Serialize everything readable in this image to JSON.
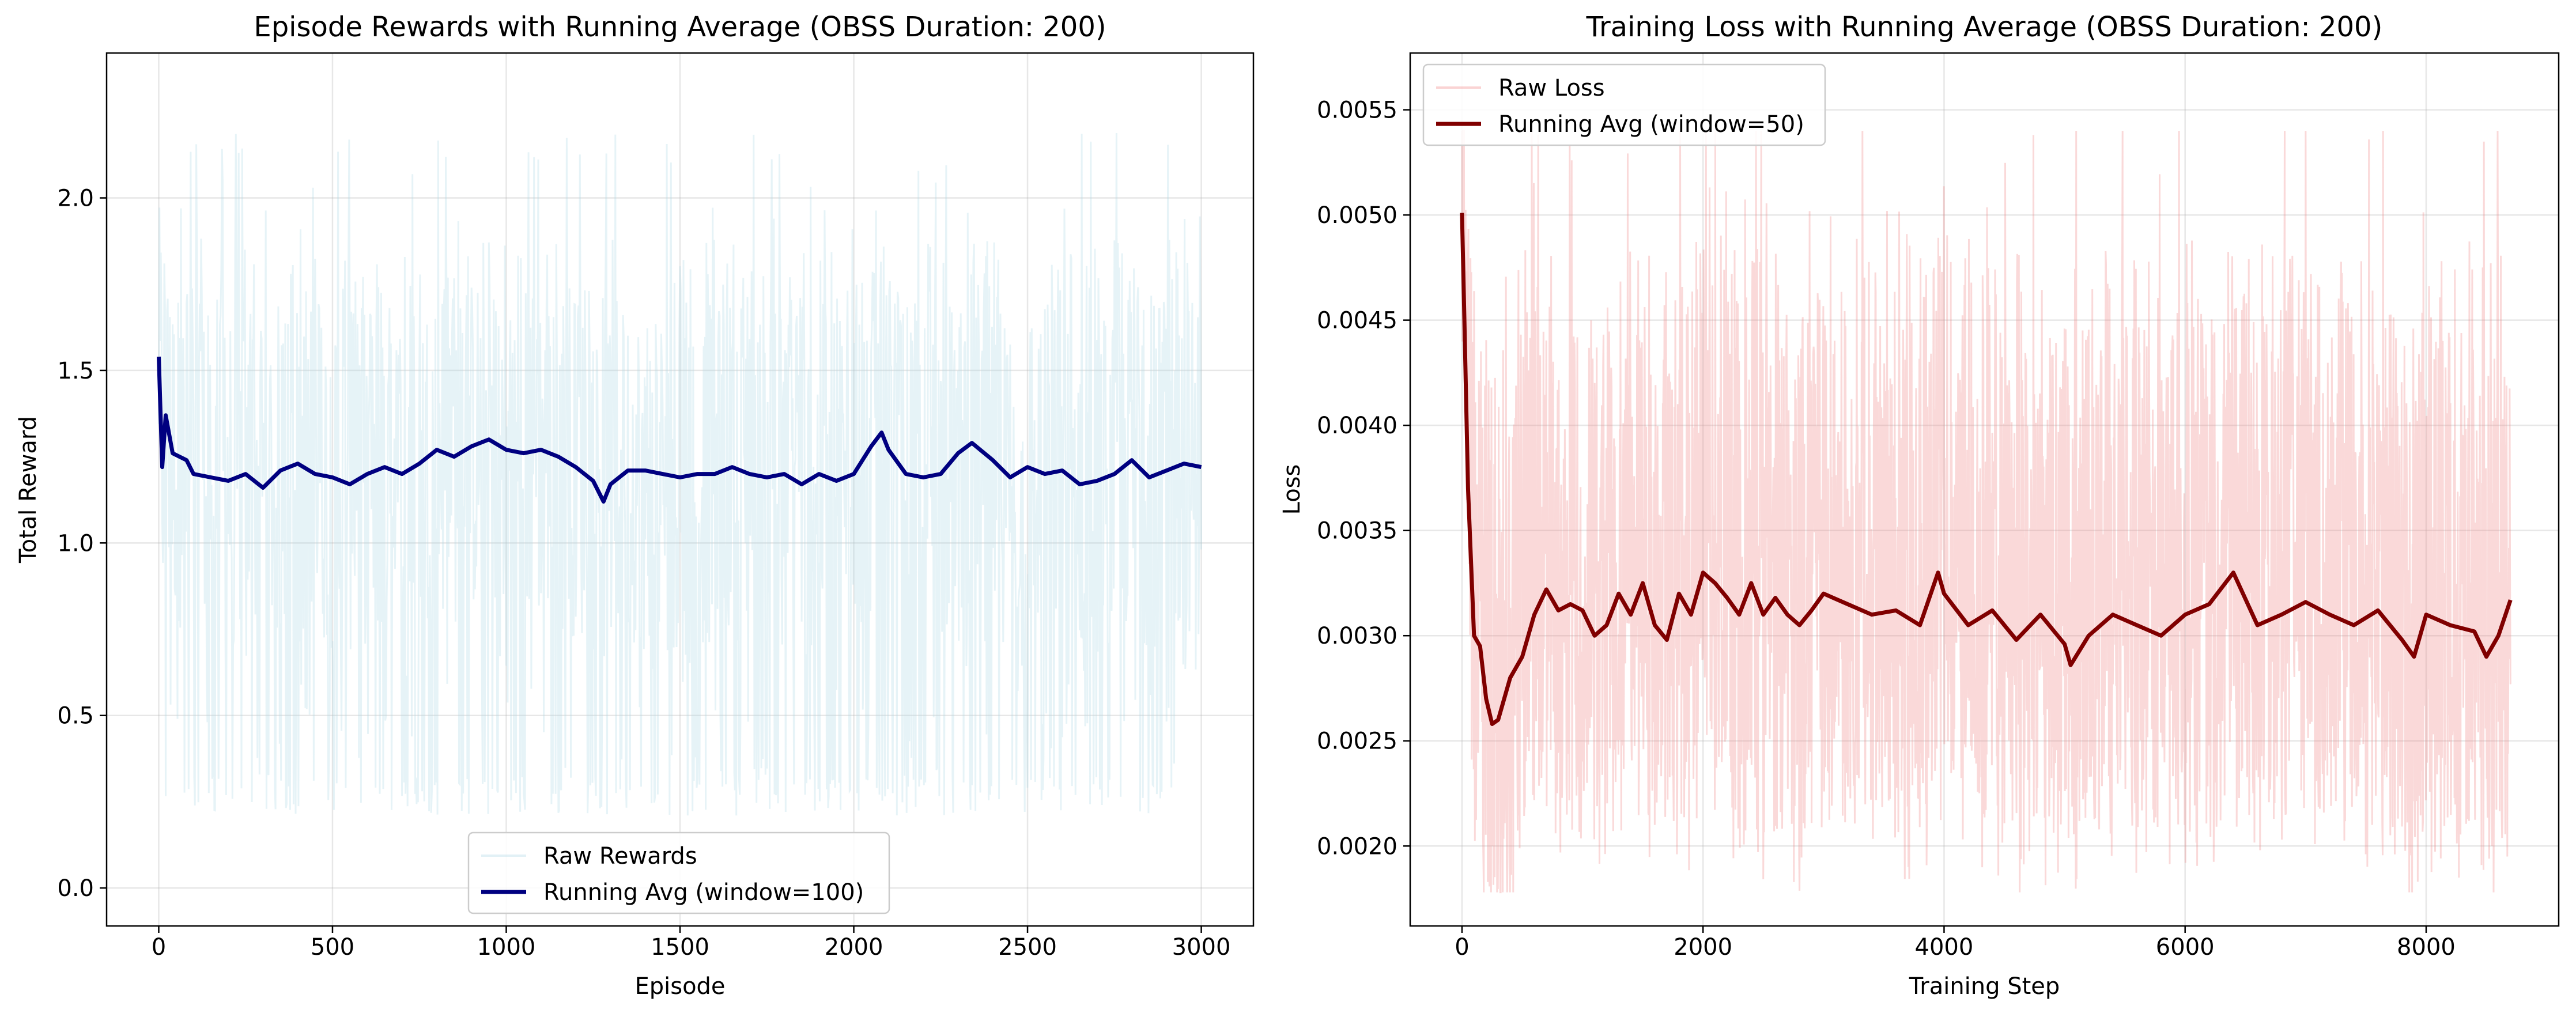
{
  "chart_data": [
    {
      "type": "line",
      "title": "Episode Rewards with Running Average (OBSS Duration: 200)",
      "xlabel": "Episode",
      "ylabel": "Total Reward",
      "xlim": [
        -150,
        3150
      ],
      "ylim": [
        -0.11,
        2.42
      ],
      "xticks": [
        0,
        500,
        1000,
        1500,
        2000,
        2500,
        3000
      ],
      "yticks": [
        0.0,
        0.5,
        1.0,
        1.5,
        2.0
      ],
      "ytick_labels": [
        "0.0",
        "0.5",
        "1.0",
        "1.5",
        "2.0"
      ],
      "grid": true,
      "legend_position": "lower-center",
      "series": [
        {
          "name": "Raw Rewards",
          "color": "#add8e6",
          "style": "noisy-band",
          "x_range": [
            0,
            3000
          ],
          "approx_range": [
            0.0,
            2.3
          ],
          "approx_center": 1.2
        },
        {
          "name": "Running Avg (window=100)",
          "color": "#000080",
          "x": [
            0,
            10,
            20,
            40,
            60,
            80,
            100,
            150,
            200,
            250,
            300,
            350,
            400,
            450,
            500,
            550,
            600,
            650,
            700,
            750,
            800,
            850,
            900,
            950,
            1000,
            1050,
            1100,
            1150,
            1200,
            1250,
            1280,
            1300,
            1350,
            1400,
            1450,
            1500,
            1550,
            1600,
            1650,
            1700,
            1750,
            1800,
            1850,
            1900,
            1950,
            2000,
            2050,
            2080,
            2100,
            2150,
            2200,
            2250,
            2300,
            2340,
            2400,
            2450,
            2500,
            2550,
            2600,
            2650,
            2700,
            2750,
            2800,
            2850,
            2900,
            2950,
            3000
          ],
          "y": [
            1.54,
            1.22,
            1.37,
            1.26,
            1.25,
            1.24,
            1.2,
            1.19,
            1.18,
            1.2,
            1.16,
            1.21,
            1.23,
            1.2,
            1.19,
            1.17,
            1.2,
            1.22,
            1.2,
            1.23,
            1.27,
            1.25,
            1.28,
            1.3,
            1.27,
            1.26,
            1.27,
            1.25,
            1.22,
            1.18,
            1.12,
            1.17,
            1.21,
            1.21,
            1.2,
            1.19,
            1.2,
            1.2,
            1.22,
            1.2,
            1.19,
            1.2,
            1.17,
            1.2,
            1.18,
            1.2,
            1.28,
            1.32,
            1.27,
            1.2,
            1.19,
            1.2,
            1.26,
            1.29,
            1.24,
            1.19,
            1.22,
            1.2,
            1.21,
            1.17,
            1.18,
            1.2,
            1.24,
            1.19,
            1.21,
            1.23,
            1.22
          ]
        }
      ]
    },
    {
      "type": "line",
      "title": "Training Loss with Running Average (OBSS Duration: 200)",
      "xlabel": "Training Step",
      "ylabel": "Loss",
      "xlim": [
        -430,
        9100
      ],
      "ylim": [
        0.00162,
        0.00577
      ],
      "xticks": [
        0,
        2000,
        4000,
        6000,
        8000
      ],
      "yticks": [
        0.002,
        0.0025,
        0.003,
        0.0035,
        0.004,
        0.0045,
        0.005,
        0.0055
      ],
      "ytick_labels": [
        "0.0020",
        "0.0025",
        "0.0030",
        "0.0035",
        "0.0040",
        "0.0045",
        "0.0050",
        "0.0055"
      ],
      "grid": true,
      "legend_position": "upper-left",
      "series": [
        {
          "name": "Raw Loss",
          "color": "#f08080",
          "style": "noisy-band",
          "x_range": [
            0,
            8700
          ],
          "approx_range": [
            0.00178,
            0.0054
          ],
          "approx_center": 0.00305
        },
        {
          "name": "Running Avg (window=50)",
          "color": "#800000",
          "x": [
            0,
            20,
            50,
            100,
            150,
            200,
            250,
            300,
            400,
            500,
            600,
            700,
            800,
            900,
            1000,
            1100,
            1200,
            1300,
            1400,
            1500,
            1600,
            1700,
            1800,
            1900,
            2000,
            2100,
            2200,
            2300,
            2400,
            2500,
            2600,
            2700,
            2800,
            2900,
            3000,
            3200,
            3400,
            3600,
            3800,
            3950,
            4000,
            4200,
            4400,
            4600,
            4800,
            5000,
            5050,
            5200,
            5400,
            5600,
            5800,
            6000,
            6200,
            6400,
            6600,
            6800,
            7000,
            7200,
            7400,
            7600,
            7800,
            7900,
            8000,
            8200,
            8400,
            8500,
            8600,
            8700
          ],
          "y": [
            0.00501,
            0.0045,
            0.0037,
            0.003,
            0.00295,
            0.0027,
            0.00258,
            0.0026,
            0.0028,
            0.0029,
            0.0031,
            0.00322,
            0.00312,
            0.00315,
            0.00312,
            0.003,
            0.00305,
            0.0032,
            0.0031,
            0.00325,
            0.00305,
            0.00298,
            0.0032,
            0.0031,
            0.0033,
            0.00325,
            0.00318,
            0.0031,
            0.00325,
            0.0031,
            0.00318,
            0.0031,
            0.00305,
            0.00312,
            0.0032,
            0.00315,
            0.0031,
            0.00312,
            0.00305,
            0.0033,
            0.0032,
            0.00305,
            0.00312,
            0.00298,
            0.0031,
            0.00296,
            0.00286,
            0.003,
            0.0031,
            0.00305,
            0.003,
            0.0031,
            0.00315,
            0.0033,
            0.00305,
            0.0031,
            0.00316,
            0.0031,
            0.00305,
            0.00312,
            0.00298,
            0.0029,
            0.0031,
            0.00305,
            0.00302,
            0.0029,
            0.003,
            0.00317
          ]
        }
      ]
    }
  ]
}
